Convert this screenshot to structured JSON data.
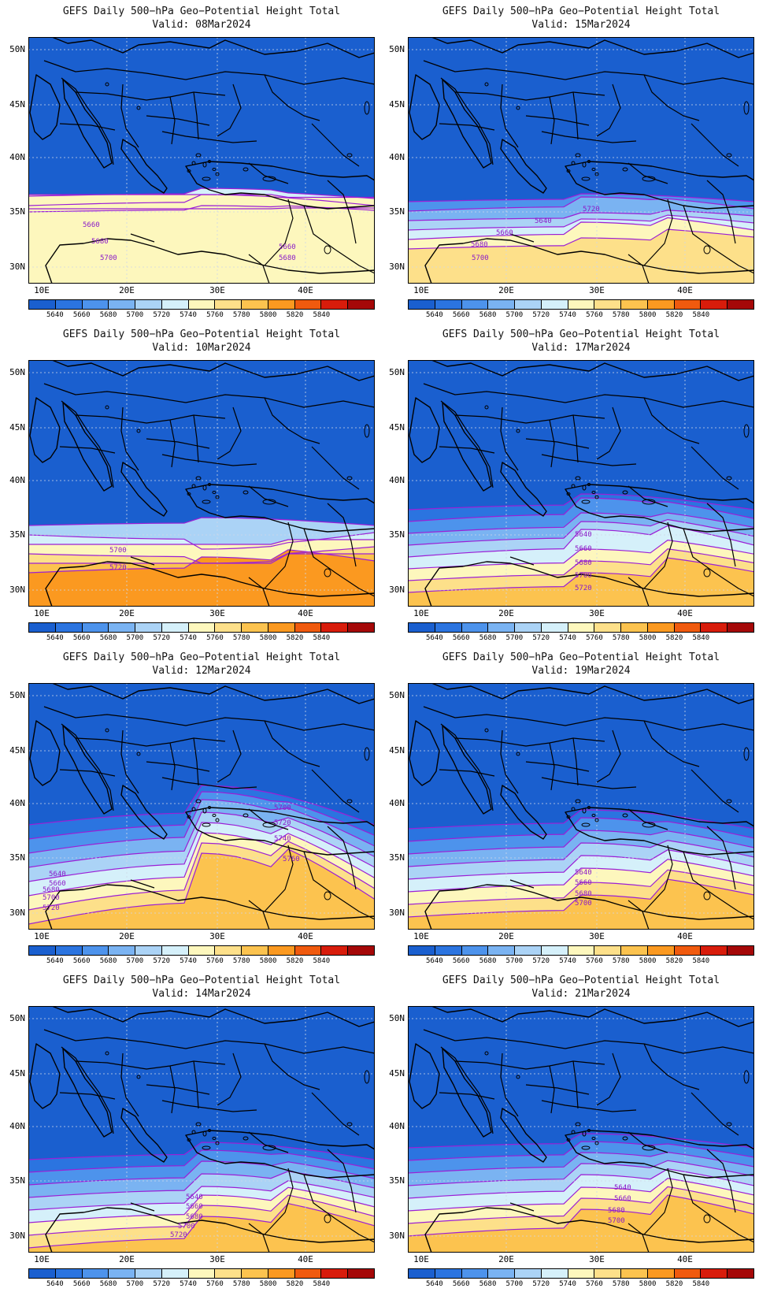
{
  "title": "GEFS Daily 500−hPa Geo−Potential Height Total",
  "lat_labels": [
    "50N",
    "45N",
    "40N",
    "35N",
    "30N"
  ],
  "lon_labels": [
    "10E",
    "20E",
    "30E",
    "40E"
  ],
  "colorbar": {
    "labels": [
      "5640",
      "5660",
      "5680",
      "5700",
      "5720",
      "5740",
      "5760",
      "5780",
      "5800",
      "5820",
      "5840"
    ],
    "colors": [
      "#1a5fcf",
      "#2b74e0",
      "#4d93ec",
      "#7ab3f2",
      "#abd3f6",
      "#d5f0fa",
      "#fdf7bd",
      "#fde08a",
      "#fcc34f",
      "#fb9920",
      "#f05a0e",
      "#d81c0b",
      "#a50808"
    ]
  },
  "panels": [
    {
      "valid": "Valid: 08Mar2024",
      "labels": [
        {
          "t": "5660"
        },
        {
          "t": "5680"
        },
        {
          "t": "5700"
        },
        {
          "t": "5660"
        },
        {
          "t": "5680"
        }
      ]
    },
    {
      "valid": "Valid: 15Mar2024",
      "labels": [
        {
          "t": "5640"
        },
        {
          "t": "5660"
        },
        {
          "t": "5680"
        },
        {
          "t": "5700"
        },
        {
          "t": "5720"
        }
      ]
    },
    {
      "valid": "Valid: 10Mar2024",
      "labels": [
        {
          "t": "5700"
        },
        {
          "t": "5720"
        }
      ]
    },
    {
      "valid": "Valid: 17Mar2024",
      "labels": [
        {
          "t": "5640"
        },
        {
          "t": "5660"
        },
        {
          "t": "5680"
        },
        {
          "t": "5700"
        },
        {
          "t": "5720"
        }
      ]
    },
    {
      "valid": "Valid: 12Mar2024",
      "labels": [
        {
          "t": "5640"
        },
        {
          "t": "5660"
        },
        {
          "t": "5680"
        },
        {
          "t": "5700"
        },
        {
          "t": "5720"
        },
        {
          "t": "5700"
        },
        {
          "t": "5720"
        },
        {
          "t": "5740"
        },
        {
          "t": "5760"
        }
      ]
    },
    {
      "valid": "Valid: 19Mar2024",
      "labels": [
        {
          "t": "5640"
        },
        {
          "t": "5660"
        },
        {
          "t": "5680"
        },
        {
          "t": "5700"
        }
      ]
    },
    {
      "valid": "Valid: 14Mar2024",
      "labels": [
        {
          "t": "5640"
        },
        {
          "t": "5660"
        },
        {
          "t": "5680"
        },
        {
          "t": "5700"
        },
        {
          "t": "5720"
        }
      ]
    },
    {
      "valid": "Valid: 21Mar2024",
      "labels": [
        {
          "t": "5640"
        },
        {
          "t": "5660"
        },
        {
          "t": "5680"
        },
        {
          "t": "5700"
        }
      ]
    }
  ]
}
